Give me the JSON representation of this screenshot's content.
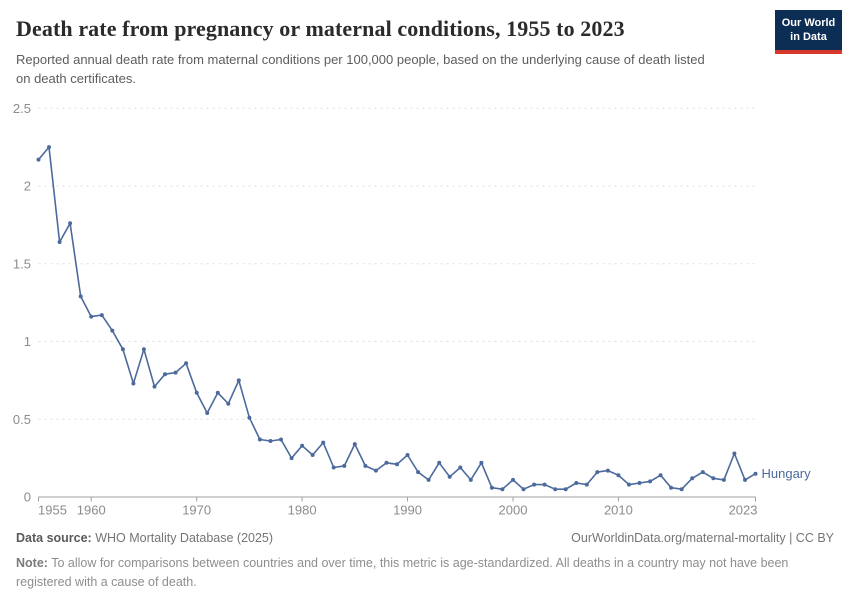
{
  "header": {
    "title": "Death rate from pregnancy or maternal conditions, 1955 to 2023",
    "subtitle": "Reported annual death rate from maternal conditions per 100,000 people, based on the underlying cause of death listed on death certificates."
  },
  "logo": {
    "line1": "Our World",
    "line2": "in Data",
    "bg_color": "#0d2e54",
    "accent_color": "#d5372d"
  },
  "footer": {
    "source_label": "Data source:",
    "source_text": " WHO Mortality Database (2025)",
    "link_text": "OurWorldinData.org/maternal-mortality | CC BY",
    "note_label": "Note:",
    "note_text": " To allow for comparisons between countries and over time, this metric is age-standardized. All deaths in a country may not have been registered with a cause of death."
  },
  "chart_data": {
    "type": "line",
    "title": "Death rate from pregnancy or maternal conditions, 1955 to 2023",
    "xlabel": "",
    "ylabel": "",
    "xlim": [
      1955,
      2023
    ],
    "ylim": [
      0,
      2.5
    ],
    "x_ticks": [
      1955,
      1960,
      1970,
      1980,
      1990,
      2000,
      2010,
      2023
    ],
    "y_ticks": [
      0,
      0.5,
      1,
      1.5,
      2,
      2.5
    ],
    "grid": true,
    "legend_position": "end-of-line",
    "axis_color": "#a1a1a1",
    "gridline_color": "#dedede",
    "tick_label_color": "#8c8c8c",
    "series": [
      {
        "name": "Hungary",
        "color": "#4C6A9C",
        "x": [
          1955,
          1956,
          1957,
          1958,
          1959,
          1960,
          1961,
          1962,
          1963,
          1964,
          1965,
          1966,
          1967,
          1968,
          1969,
          1970,
          1971,
          1972,
          1973,
          1974,
          1975,
          1976,
          1977,
          1978,
          1979,
          1980,
          1981,
          1982,
          1983,
          1984,
          1985,
          1986,
          1987,
          1988,
          1989,
          1990,
          1991,
          1992,
          1993,
          1994,
          1995,
          1996,
          1997,
          1998,
          1999,
          2000,
          2001,
          2002,
          2003,
          2004,
          2005,
          2006,
          2007,
          2008,
          2009,
          2010,
          2011,
          2012,
          2013,
          2014,
          2015,
          2016,
          2017,
          2018,
          2019,
          2020,
          2021,
          2022,
          2023
        ],
        "values": [
          2.17,
          2.25,
          1.64,
          1.76,
          1.29,
          1.16,
          1.17,
          1.07,
          0.95,
          0.73,
          0.95,
          0.71,
          0.79,
          0.8,
          0.86,
          0.67,
          0.54,
          0.67,
          0.6,
          0.75,
          0.51,
          0.37,
          0.36,
          0.37,
          0.25,
          0.33,
          0.27,
          0.35,
          0.19,
          0.2,
          0.34,
          0.2,
          0.17,
          0.22,
          0.21,
          0.27,
          0.16,
          0.11,
          0.22,
          0.13,
          0.19,
          0.11,
          0.22,
          0.06,
          0.05,
          0.11,
          0.05,
          0.08,
          0.08,
          0.05,
          0.05,
          0.09,
          0.08,
          0.16,
          0.17,
          0.14,
          0.08,
          0.09,
          0.1,
          0.14,
          0.06,
          0.05,
          0.12,
          0.16,
          0.12,
          0.11,
          0.28,
          0.11,
          0.15
        ]
      }
    ]
  }
}
